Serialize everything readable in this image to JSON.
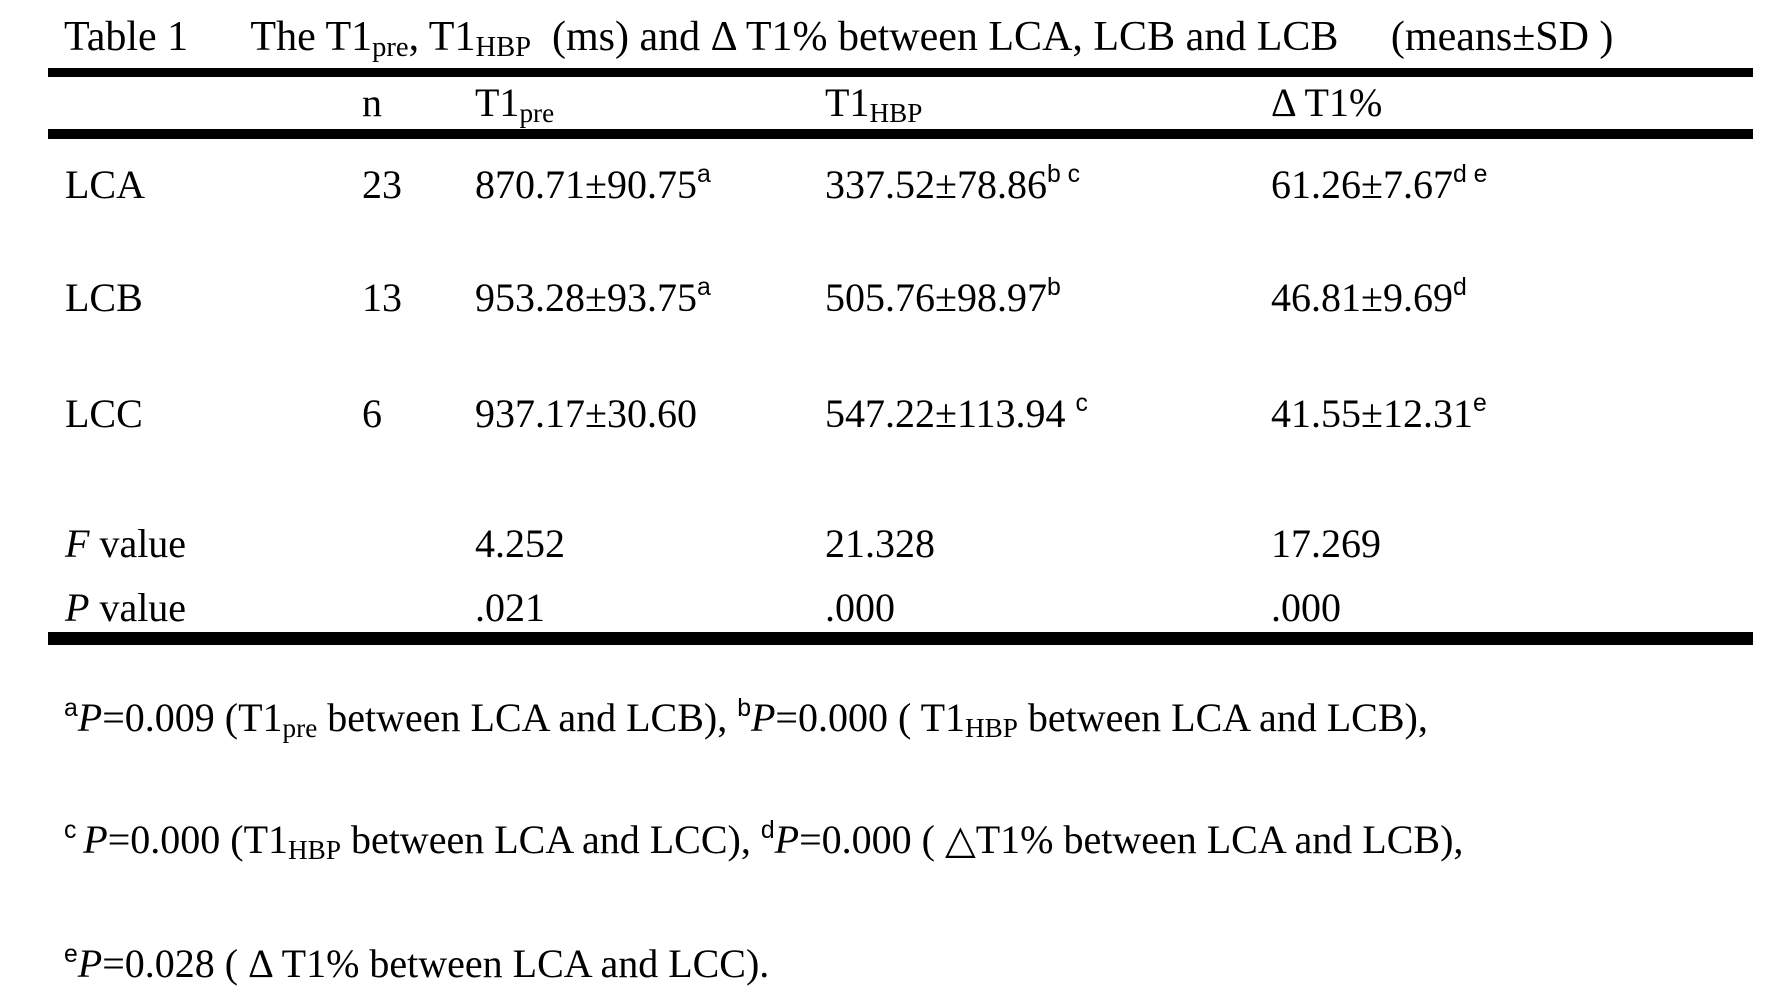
{
  "page": {
    "background": "#ffffff",
    "text_color": "#000000"
  },
  "title": {
    "segments": [
      {
        "t": "Table 1      The T1",
        "s": "n"
      },
      {
        "t": "pre",
        "s": "sub"
      },
      {
        "t": ", T1",
        "s": "n"
      },
      {
        "t": "HBP",
        "s": "sub"
      },
      {
        "t": "  (ms) and Δ T1% between LCA, LCB and LCB     (means±SD )",
        "s": "n"
      }
    ]
  },
  "table": {
    "header": [
      "",
      "n",
      [
        {
          "t": "T1"
        },
        {
          "t": "pre",
          "s": "sub"
        }
      ],
      [
        {
          "t": "T1"
        },
        {
          "t": "HBP",
          "s": "sub"
        }
      ],
      "Δ T1%"
    ],
    "rows": [
      {
        "cells": [
          "LCA",
          "23",
          [
            {
              "t": "870.71±90.75"
            },
            {
              "t": "a",
              "s": "sup"
            }
          ],
          [
            {
              "t": "337.52±78.86"
            },
            {
              "t": "b c",
              "s": "sup"
            }
          ],
          [
            {
              "t": "61.26±7.67"
            },
            {
              "t": "d e",
              "s": "sup"
            }
          ]
        ]
      },
      {
        "cells": [
          "LCB",
          "13",
          [
            {
              "t": "953.28±93.75"
            },
            {
              "t": "a",
              "s": "sup"
            }
          ],
          [
            {
              "t": "505.76±98.97"
            },
            {
              "t": "b",
              "s": "sup"
            }
          ],
          [
            {
              "t": "46.81±9.69"
            },
            {
              "t": "d",
              "s": "sup"
            }
          ]
        ]
      },
      {
        "cells": [
          "LCC",
          "6",
          "937.17±30.60",
          [
            {
              "t": "547.22±113.94 "
            },
            {
              "t": "c",
              "s": "sup"
            }
          ],
          [
            {
              "t": "41.55±12.31"
            },
            {
              "t": "e",
              "s": "sup"
            }
          ]
        ]
      },
      {
        "cells": [
          [
            {
              "t": "F",
              "s": "i"
            },
            {
              "t": " value"
            }
          ],
          "",
          "4.252",
          "21.328",
          "17.269"
        ]
      },
      {
        "cells": [
          [
            {
              "t": "P",
              "s": "i"
            },
            {
              "t": " value"
            }
          ],
          "",
          ".021",
          ".000",
          ".000"
        ]
      }
    ]
  },
  "footnotes": [
    {
      "segments": [
        {
          "t": "a",
          "s": "sup"
        },
        {
          "t": "P",
          "s": "i"
        },
        {
          "t": "=0.009 (T1"
        },
        {
          "t": "pre",
          "s": "sub"
        },
        {
          "t": " between LCA and LCB), "
        },
        {
          "t": "b",
          "s": "sup"
        },
        {
          "t": "P",
          "s": "i"
        },
        {
          "t": "=0.000 ( T1"
        },
        {
          "t": "HBP",
          "s": "sub"
        },
        {
          "t": " between LCA and LCB),"
        }
      ]
    },
    {
      "segments": [
        {
          "t": "c ",
          "s": "sup"
        },
        {
          "t": "P",
          "s": "i"
        },
        {
          "t": "=0.000 (T1"
        },
        {
          "t": "HBP",
          "s": "sub"
        },
        {
          "t": " between LCA and LCC), "
        },
        {
          "t": "d",
          "s": "sup"
        },
        {
          "t": "P",
          "s": "i"
        },
        {
          "t": "=0.000 ( △T1% between LCA and LCB),"
        }
      ]
    },
    {
      "segments": [
        {
          "t": "e",
          "s": "sup"
        },
        {
          "t": "P",
          "s": "i"
        },
        {
          "t": "=0.028 ( Δ T1% between LCA and LCC)."
        }
      ]
    }
  ]
}
